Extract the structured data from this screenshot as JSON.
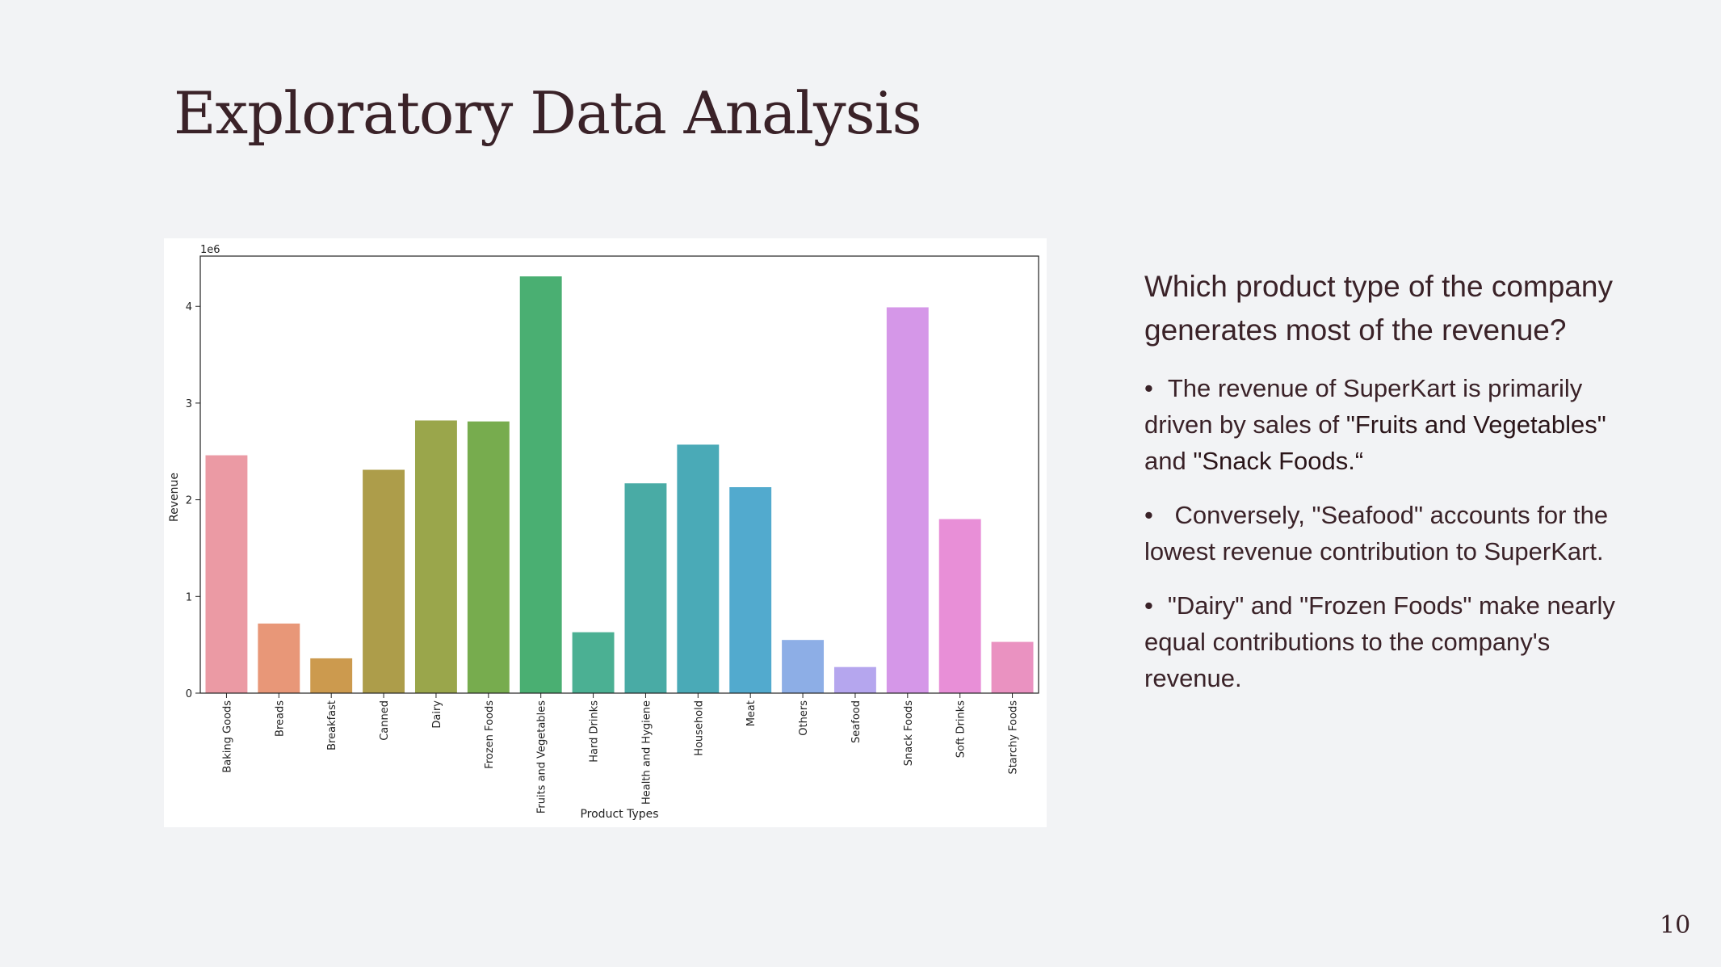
{
  "slide": {
    "title": "Exploratory Data Analysis",
    "page_number": "10"
  },
  "panel": {
    "question": "Which product type of the company generates most of the revenue?",
    "bullets": [
      {
        "marker": "•",
        "parts": [
          "The revenue of SuperKart is primarily driven by sales of ",
          "\"Fruits and Vegetables\"",
          " and ",
          "\"Snack Foods.“"
        ]
      },
      {
        "marker": "•",
        "parts": [
          " Conversely, \"Seafood\" accounts for the lowest revenue contribution to SuperKart."
        ]
      },
      {
        "marker": "•",
        "parts": [
          "\"Dairy\" and \"Frozen Foods\" make nearly equal contributions to the company's revenue."
        ]
      }
    ]
  },
  "chart_data": {
    "type": "bar",
    "xlabel": "Product Types",
    "ylabel": "Revenue",
    "scale_label": "1e6",
    "ylim": [
      0,
      4.52
    ],
    "yticks": [
      0,
      1,
      2,
      3,
      4
    ],
    "grid": false,
    "categories": [
      "Baking Goods",
      "Breads",
      "Breakfast",
      "Canned",
      "Dairy",
      "Frozen Foods",
      "Fruits and Vegetables",
      "Hard Drinks",
      "Health and Hygiene",
      "Household",
      "Meat",
      "Others",
      "Seafood",
      "Snack Foods",
      "Soft Drinks",
      "Starchy Foods"
    ],
    "values": [
      2.46,
      0.72,
      0.36,
      2.31,
      2.82,
      2.81,
      4.31,
      0.63,
      2.17,
      2.57,
      2.13,
      0.55,
      0.27,
      3.99,
      1.8,
      0.53
    ],
    "colors": [
      "#eb9aa4",
      "#e89778",
      "#cc9a4e",
      "#ad9d4a",
      "#9aa64b",
      "#77ac4e",
      "#4aaf72",
      "#4bb093",
      "#49aba5",
      "#4aaab7",
      "#52aace",
      "#8daee6",
      "#b5a6ee",
      "#d597e8",
      "#e88fd7",
      "#ea92c1"
    ]
  }
}
